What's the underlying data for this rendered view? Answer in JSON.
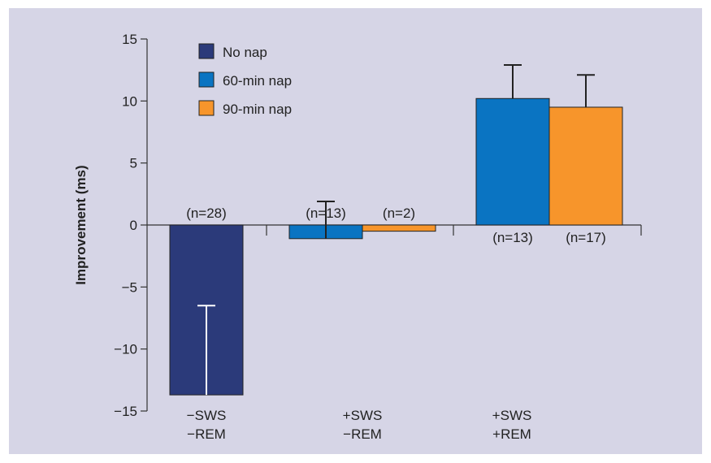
{
  "chart_data": {
    "type": "bar",
    "ylabel": "Improvement (ms)",
    "xlabel": "",
    "ylim": [
      -15,
      15
    ],
    "yticks": [
      15,
      10,
      5,
      0,
      -5,
      -10,
      -15
    ],
    "ytick_labels": [
      "15",
      "10",
      "5",
      "0",
      "−5",
      "−10",
      "−15"
    ],
    "categories": [
      [
        "−SWS",
        "−REM"
      ],
      [
        "+SWS",
        "−REM"
      ],
      [
        "+SWS",
        "+REM"
      ]
    ],
    "series": [
      {
        "name": "No nap",
        "color": "#2b3a7a"
      },
      {
        "name": "60-min nap",
        "color": "#0a74c2"
      },
      {
        "name": "90-min nap",
        "color": "#f7952b"
      }
    ],
    "bars": [
      {
        "group": 0,
        "series": 0,
        "value": -13.7,
        "error": 7.2,
        "n_label": "(n=28)"
      },
      {
        "group": 1,
        "series": 1,
        "value": -1.1,
        "error": 3.0,
        "n_label": "(n=13)"
      },
      {
        "group": 1,
        "series": 2,
        "value": -0.5,
        "error": 0,
        "n_label": "(n=2)"
      },
      {
        "group": 2,
        "series": 1,
        "value": 10.2,
        "error": 2.7,
        "n_label": "(n=13)"
      },
      {
        "group": 2,
        "series": 2,
        "value": 9.5,
        "error": 2.6,
        "n_label": "(n=17)"
      }
    ],
    "legend_position": "top-left",
    "background": "#d6d5e6"
  }
}
